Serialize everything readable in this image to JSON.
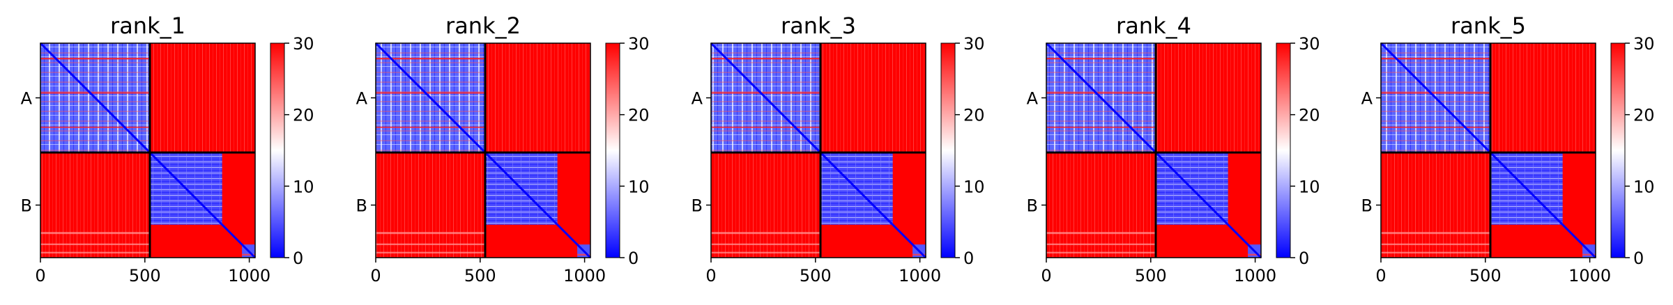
{
  "figure": {
    "background": "#ffffff"
  },
  "chart_data": [
    {
      "type": "heatmap",
      "title": "rank_1",
      "x_ticks": [
        0,
        500,
        1000
      ],
      "xlim": [
        0,
        1028
      ],
      "chain_labels": [
        "A",
        "B"
      ],
      "chain_boundary": 524,
      "colorbar": {
        "min": 0,
        "max": 30,
        "ticks": [
          0,
          10,
          20,
          30
        ],
        "colormap": "bwr",
        "colors": [
          "#0000ff",
          "#ffffff",
          "#ff0000"
        ]
      },
      "blocks": [
        {
          "rows": "A",
          "cols": "A",
          "mean_value": 8,
          "pattern": "diagonal-low"
        },
        {
          "rows": "A",
          "cols": "B",
          "mean_value": 29,
          "pattern": "high"
        },
        {
          "rows": "B",
          "cols": "A",
          "mean_value": 29,
          "pattern": "high"
        },
        {
          "rows": "B",
          "cols": "B",
          "mean_value": 6,
          "pattern": "diagonal-low, sub-block 524-870 low, tail 900-1028 low"
        }
      ]
    },
    {
      "type": "heatmap",
      "title": "rank_2",
      "x_ticks": [
        0,
        500,
        1000
      ],
      "xlim": [
        0,
        1028
      ],
      "chain_labels": [
        "A",
        "B"
      ],
      "chain_boundary": 524,
      "colorbar": {
        "min": 0,
        "max": 30,
        "ticks": [
          0,
          10,
          20,
          30
        ],
        "colormap": "bwr",
        "colors": [
          "#0000ff",
          "#ffffff",
          "#ff0000"
        ]
      },
      "blocks": [
        {
          "rows": "A",
          "cols": "A",
          "mean_value": 8,
          "pattern": "diagonal-low"
        },
        {
          "rows": "A",
          "cols": "B",
          "mean_value": 29,
          "pattern": "high"
        },
        {
          "rows": "B",
          "cols": "A",
          "mean_value": 29,
          "pattern": "high"
        },
        {
          "rows": "B",
          "cols": "B",
          "mean_value": 6,
          "pattern": "diagonal-low, sub-block 524-870 low, tail 900-1028 low"
        }
      ]
    },
    {
      "type": "heatmap",
      "title": "rank_3",
      "x_ticks": [
        0,
        500,
        1000
      ],
      "xlim": [
        0,
        1028
      ],
      "chain_labels": [
        "A",
        "B"
      ],
      "chain_boundary": 524,
      "colorbar": {
        "min": 0,
        "max": 30,
        "ticks": [
          0,
          10,
          20,
          30
        ],
        "colormap": "bwr",
        "colors": [
          "#0000ff",
          "#ffffff",
          "#ff0000"
        ]
      },
      "blocks": [
        {
          "rows": "A",
          "cols": "A",
          "mean_value": 8,
          "pattern": "diagonal-low"
        },
        {
          "rows": "A",
          "cols": "B",
          "mean_value": 29,
          "pattern": "high"
        },
        {
          "rows": "B",
          "cols": "A",
          "mean_value": 29,
          "pattern": "high"
        },
        {
          "rows": "B",
          "cols": "B",
          "mean_value": 6,
          "pattern": "diagonal-low, sub-block 524-870 low, tail 900-1028 low"
        }
      ]
    },
    {
      "type": "heatmap",
      "title": "rank_4",
      "x_ticks": [
        0,
        500,
        1000
      ],
      "xlim": [
        0,
        1028
      ],
      "chain_labels": [
        "A",
        "B"
      ],
      "chain_boundary": 524,
      "colorbar": {
        "min": 0,
        "max": 30,
        "ticks": [
          0,
          10,
          20,
          30
        ],
        "colormap": "bwr",
        "colors": [
          "#0000ff",
          "#ffffff",
          "#ff0000"
        ]
      },
      "blocks": [
        {
          "rows": "A",
          "cols": "A",
          "mean_value": 8,
          "pattern": "diagonal-low"
        },
        {
          "rows": "A",
          "cols": "B",
          "mean_value": 30,
          "pattern": "high"
        },
        {
          "rows": "B",
          "cols": "A",
          "mean_value": 30,
          "pattern": "high"
        },
        {
          "rows": "B",
          "cols": "B",
          "mean_value": 6,
          "pattern": "diagonal-low, sub-block 524-870 low, tail 900-1028 low"
        }
      ]
    },
    {
      "type": "heatmap",
      "title": "rank_5",
      "x_ticks": [
        0,
        500,
        1000
      ],
      "xlim": [
        0,
        1028
      ],
      "chain_labels": [
        "A",
        "B"
      ],
      "chain_boundary": 524,
      "colorbar": {
        "min": 0,
        "max": 30,
        "ticks": [
          0,
          10,
          20,
          30
        ],
        "colormap": "bwr",
        "colors": [
          "#0000ff",
          "#ffffff",
          "#ff0000"
        ]
      },
      "blocks": [
        {
          "rows": "A",
          "cols": "A",
          "mean_value": 8,
          "pattern": "diagonal-low"
        },
        {
          "rows": "A",
          "cols": "B",
          "mean_value": 30,
          "pattern": "high"
        },
        {
          "rows": "B",
          "cols": "A",
          "mean_value": 30,
          "pattern": "high"
        },
        {
          "rows": "B",
          "cols": "B",
          "mean_value": 6,
          "pattern": "diagonal-low, sub-block 524-870 low, tail 900-1028 low"
        }
      ]
    }
  ]
}
